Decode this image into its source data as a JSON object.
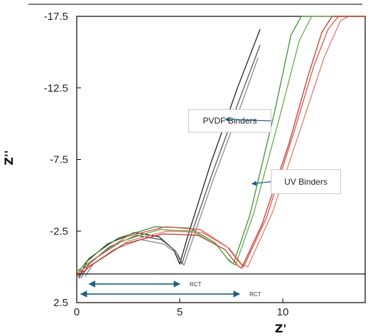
{
  "chart_data": {
    "type": "line",
    "xlabel": "Z'",
    "ylabel": "Z''",
    "xlim": [
      0,
      14
    ],
    "ylim": [
      2.5,
      -17.5
    ],
    "x_ticks": [
      "0",
      "5",
      "10"
    ],
    "y_ticks": [
      "-17.5",
      "-12.5",
      "-7.5",
      "-2.5",
      "2.5"
    ],
    "grid": false,
    "colors": {
      "pvdf": "#2a2a2a",
      "uv_green": "#3f8f3a",
      "uv_red": "#d9534a",
      "arrow": "#1f5f80",
      "frame": "#000000"
    },
    "series": [
      {
        "group": "pvdf",
        "color": "#222222",
        "points": [
          [
            0.1,
            0.8
          ],
          [
            0.5,
            -0.4
          ],
          [
            1.5,
            -1.6
          ],
          [
            2.8,
            -2.4
          ],
          [
            4.0,
            -2.1
          ],
          [
            4.7,
            -1.2
          ],
          [
            5.0,
            -0.2
          ],
          [
            5.4,
            -2.2
          ],
          [
            6.5,
            -7.2
          ],
          [
            7.8,
            -12.5
          ],
          [
            8.9,
            -16.6
          ]
        ]
      },
      {
        "group": "pvdf",
        "color": "#555555",
        "points": [
          [
            0.2,
            0.8
          ],
          [
            0.6,
            -0.2
          ],
          [
            1.6,
            -1.4
          ],
          [
            2.9,
            -2.2
          ],
          [
            4.1,
            -1.9
          ],
          [
            4.8,
            -1.1
          ],
          [
            5.1,
            -0.2
          ],
          [
            5.5,
            -2.0
          ],
          [
            6.6,
            -6.6
          ],
          [
            7.9,
            -11.7
          ],
          [
            8.9,
            -15.5
          ]
        ]
      },
      {
        "group": "pvdf",
        "color": "#8a8a8a",
        "points": [
          [
            0.4,
            0.7
          ],
          [
            0.8,
            -0.2
          ],
          [
            1.8,
            -1.2
          ],
          [
            3.1,
            -1.9
          ],
          [
            4.2,
            -1.6
          ],
          [
            4.9,
            -0.9
          ],
          [
            5.2,
            -0.1
          ],
          [
            5.6,
            -1.8
          ],
          [
            6.6,
            -6.0
          ],
          [
            7.9,
            -11.0
          ],
          [
            8.8,
            -14.6
          ]
        ]
      },
      {
        "group": "uv",
        "color": "#3f8f3a",
        "points": [
          [
            0.0,
            0.5
          ],
          [
            0.6,
            -0.6
          ],
          [
            2.0,
            -2.0
          ],
          [
            3.8,
            -2.8
          ],
          [
            5.5,
            -2.7
          ],
          [
            6.7,
            -1.7
          ],
          [
            7.3,
            -0.6
          ],
          [
            7.6,
            -0.2
          ],
          [
            8.4,
            -3.6
          ],
          [
            9.6,
            -10.8
          ],
          [
            10.4,
            -16.2
          ],
          [
            10.9,
            -17.5
          ],
          [
            14.0,
            -17.5
          ]
        ]
      },
      {
        "group": "uv",
        "color": "#6aa84f",
        "points": [
          [
            0.0,
            0.3
          ],
          [
            0.7,
            -0.4
          ],
          [
            2.2,
            -1.8
          ],
          [
            4.0,
            -2.6
          ],
          [
            5.6,
            -2.5
          ],
          [
            6.8,
            -1.5
          ],
          [
            7.4,
            -0.4
          ],
          [
            7.7,
            -0.1
          ],
          [
            8.6,
            -3.8
          ],
          [
            9.8,
            -10.2
          ],
          [
            10.8,
            -15.8
          ],
          [
            11.4,
            -17.5
          ],
          [
            14.0,
            -17.5
          ]
        ]
      },
      {
        "group": "uv",
        "color": "#d9534a",
        "points": [
          [
            0.0,
            0.6
          ],
          [
            0.8,
            -0.5
          ],
          [
            2.4,
            -2.1
          ],
          [
            4.3,
            -2.8
          ],
          [
            6.0,
            -2.6
          ],
          [
            7.3,
            -1.4
          ],
          [
            7.9,
            -0.3
          ],
          [
            8.1,
            0.0
          ],
          [
            9.2,
            -3.4
          ],
          [
            10.5,
            -9.2
          ],
          [
            11.5,
            -14.0
          ],
          [
            12.2,
            -16.6
          ],
          [
            12.7,
            -17.5
          ],
          [
            14.0,
            -17.5
          ]
        ]
      },
      {
        "group": "uv",
        "color": "#e07b6f",
        "points": [
          [
            0.0,
            0.4
          ],
          [
            0.9,
            -0.3
          ],
          [
            2.5,
            -1.8
          ],
          [
            4.4,
            -2.5
          ],
          [
            6.1,
            -2.4
          ],
          [
            7.4,
            -1.3
          ],
          [
            8.0,
            -0.2
          ],
          [
            8.3,
            0.0
          ],
          [
            9.5,
            -3.8
          ],
          [
            10.9,
            -9.8
          ],
          [
            12.0,
            -14.6
          ],
          [
            12.8,
            -17.2
          ],
          [
            13.2,
            -17.5
          ],
          [
            14.0,
            -17.5
          ]
        ]
      },
      {
        "group": "uv",
        "color": "#c0392b",
        "points": [
          [
            0.0,
            0.7
          ],
          [
            0.8,
            -0.2
          ],
          [
            2.3,
            -1.6
          ],
          [
            4.2,
            -2.3
          ],
          [
            5.9,
            -2.2
          ],
          [
            7.2,
            -1.2
          ],
          [
            7.8,
            -0.1
          ],
          [
            8.0,
            0.1
          ],
          [
            9.0,
            -3.0
          ],
          [
            10.3,
            -8.6
          ],
          [
            11.2,
            -13.2
          ],
          [
            11.9,
            -16.4
          ],
          [
            12.4,
            -17.5
          ],
          [
            14.0,
            -17.5
          ]
        ]
      }
    ],
    "baseline_y": 0.5,
    "annotations": [
      {
        "text": "PVDF Binders",
        "x": 5.5,
        "y": -10.0,
        "arrow_to": [
          7.2,
          -10.3
        ]
      },
      {
        "text": "UV Binders",
        "x": 9.5,
        "y": -5.8,
        "arrow_to": [
          8.5,
          -5.8
        ]
      }
    ],
    "rct_markers": [
      {
        "label": "RCT",
        "from": 0.6,
        "to": 5.0,
        "y": 1.2
      },
      {
        "label": "RCT",
        "from": 0.2,
        "to": 7.9,
        "y": 1.9
      }
    ]
  }
}
